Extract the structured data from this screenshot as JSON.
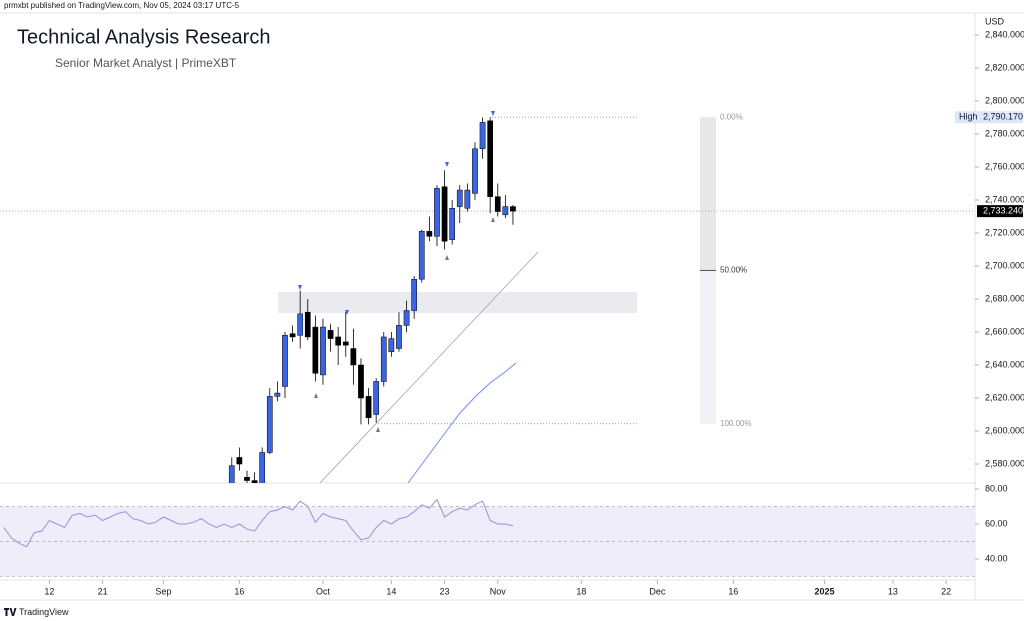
{
  "header": {
    "publisher": "prmxbt published on TradingView.com, Nov 05, 2024 03:17 UTC-5",
    "title": "Technical Analysis Research",
    "subtitle": "Senior Market Analyst | PrimeXBT",
    "currency": "USD",
    "brand": "TradingView"
  },
  "chart_data": [
    {
      "type": "candlestick",
      "up_color": "#3b64e3",
      "down_color": "#000000",
      "x": [
        0,
        1,
        2,
        3,
        4,
        5,
        6,
        7,
        8,
        9,
        10,
        11,
        12,
        13,
        14,
        15,
        16,
        17,
        18,
        19,
        20,
        21,
        22,
        23,
        24,
        25,
        26,
        27,
        28,
        29,
        30,
        31,
        32,
        33,
        34,
        35,
        36,
        37
      ],
      "open": [
        2566,
        2584,
        2572,
        2570,
        2568,
        2587,
        2621,
        2627,
        2659,
        2658,
        2672,
        2663,
        2634,
        2661,
        2657,
        2654,
        2650,
        2640,
        2621,
        2610,
        2630,
        2648,
        2650,
        2664,
        2673,
        2692,
        2721,
        2718,
        2748,
        2716,
        2736,
        2735,
        2744,
        2771,
        2788,
        2742,
        2731,
        2736
      ],
      "high": [
        2584,
        2590,
        2576,
        2575,
        2590,
        2626,
        2630,
        2660,
        2664,
        2685,
        2680,
        2670,
        2668,
        2665,
        2663,
        2672,
        2662,
        2644,
        2626,
        2632,
        2660,
        2660,
        2672,
        2679,
        2694,
        2722,
        2730,
        2749,
        2758,
        2740,
        2749,
        2750,
        2775,
        2790,
        2790.17,
        2750,
        2743,
        2737
      ],
      "low": [
        2562,
        2576,
        2566,
        2562,
        2564,
        2586,
        2618,
        2620,
        2654,
        2650,
        2655,
        2630,
        2628,
        2648,
        2640,
        2645,
        2628,
        2604,
        2604,
        2605,
        2627,
        2645,
        2648,
        2660,
        2668,
        2690,
        2715,
        2712,
        2710,
        2713,
        2726,
        2733,
        2740,
        2765,
        2732,
        2730,
        2729,
        2725
      ],
      "close": [
        2579,
        2580,
        2570,
        2568,
        2587,
        2621,
        2623,
        2658,
        2657,
        2671,
        2657,
        2635,
        2663,
        2656,
        2652,
        2652,
        2640,
        2620,
        2608,
        2630,
        2657,
        2656,
        2664,
        2673,
        2692,
        2721,
        2718,
        2747,
        2715,
        2735,
        2746,
        2746,
        2771,
        2787,
        2742,
        2733,
        2736,
        2733.24
      ],
      "xlim": [
        -30.5,
        97.8
      ],
      "xticks": [
        {
          "value": -24,
          "label": "12"
        },
        {
          "value": -17,
          "label": "21"
        },
        {
          "value": -9,
          "label": "Sep"
        },
        {
          "value": 1,
          "label": "16"
        },
        {
          "value": 12,
          "label": "Oct"
        },
        {
          "value": 21,
          "label": "14"
        },
        {
          "value": 28,
          "label": "23"
        },
        {
          "value": 35,
          "label": "Nov"
        },
        {
          "value": 46,
          "label": "18"
        },
        {
          "value": 56,
          "label": "Dec"
        },
        {
          "value": 66,
          "label": "16"
        },
        {
          "value": 78,
          "label": "2025"
        },
        {
          "value": 87,
          "label": "13"
        },
        {
          "value": 94,
          "label": "22"
        }
      ],
      "ylim": [
        2568.5,
        2853.3
      ],
      "yticks": [
        {
          "value": 2580,
          "label": "2,580.000"
        },
        {
          "value": 2600,
          "label": "2,600.000"
        },
        {
          "value": 2620,
          "label": "2,620.000"
        },
        {
          "value": 2640,
          "label": "2,640.000"
        },
        {
          "value": 2660,
          "label": "2,660.000"
        },
        {
          "value": 2680,
          "label": "2,680.000"
        },
        {
          "value": 2700,
          "label": "2,700.000"
        },
        {
          "value": 2720,
          "label": "2,720.000"
        },
        {
          "value": 2740,
          "label": "2,740.000"
        },
        {
          "value": 2760,
          "label": "2,760.000"
        },
        {
          "value": 2780,
          "label": "2,780.000"
        },
        {
          "value": 2800,
          "label": "2,800.000"
        },
        {
          "value": 2820,
          "label": "2,820.000"
        },
        {
          "value": 2840,
          "label": "2,840.000"
        }
      ],
      "high_tag": {
        "text": "High",
        "value": 2790.17,
        "label": "2,790.170"
      },
      "last_price": {
        "value": 2733.24,
        "label": "2,733.240"
      },
      "fib": {
        "high": 2790.17,
        "low": 2604.4,
        "levels": [
          {
            "value": 0,
            "label": "0.00%"
          },
          {
            "value": 50,
            "label": "50.00%"
          },
          {
            "value": 100,
            "label": "100.00%"
          }
        ]
      }
    },
    {
      "type": "line",
      "color": "#9c8fd6",
      "x": [
        -30,
        -29,
        -28,
        -27,
        -26,
        -25,
        -24,
        -23,
        -22,
        -21,
        -20,
        -19,
        -18,
        -17,
        -16,
        -15,
        -14,
        -13,
        -12,
        -11,
        -10,
        -9,
        -8,
        -7,
        -6,
        -5,
        -4,
        -3,
        -2,
        -1,
        0,
        1,
        2,
        3,
        4,
        5,
        6,
        7,
        8,
        9,
        10,
        11,
        12,
        13,
        14,
        15,
        16,
        17,
        18,
        19,
        20,
        21,
        22,
        23,
        24,
        25,
        26,
        27,
        28,
        29,
        30,
        31,
        32,
        33,
        34,
        35,
        36,
        37
      ],
      "values": [
        58,
        52,
        49,
        47,
        55,
        56,
        62,
        60,
        58,
        65,
        66,
        64,
        65,
        62,
        64,
        66,
        67,
        63,
        62,
        60,
        61,
        64,
        62,
        60,
        60,
        61,
        63,
        60,
        58,
        60,
        58,
        60,
        57,
        56,
        62,
        67,
        68,
        70,
        68,
        73,
        70,
        61,
        66,
        64,
        63,
        62,
        56,
        51,
        52,
        58,
        62,
        60,
        63,
        64,
        67,
        71,
        69,
        74,
        64,
        67,
        69,
        68,
        71,
        73,
        62,
        60,
        60,
        59
      ],
      "ylim": [
        28.0,
        83.4
      ],
      "yticks": [
        {
          "value": 80,
          "label": "80.00"
        },
        {
          "value": 60,
          "label": "60.00"
        },
        {
          "value": 40,
          "label": "40.00"
        }
      ],
      "levels": [
        30,
        50,
        70
      ]
    }
  ]
}
